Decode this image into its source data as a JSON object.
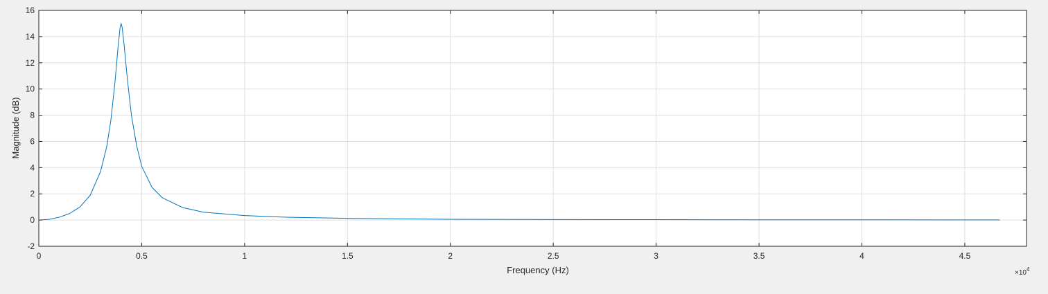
{
  "chart_data": {
    "type": "line",
    "title": "",
    "xlabel": "Frequency (Hz)",
    "ylabel": "Magnitude (dB)",
    "xlim": [
      0,
      48000
    ],
    "ylim": [
      -2,
      16
    ],
    "x_exponent_label": {
      "base": "×10",
      "power": "4"
    },
    "x_ticks": [
      0,
      5000,
      10000,
      15000,
      20000,
      25000,
      30000,
      35000,
      40000,
      45000
    ],
    "x_tick_labels": [
      "0",
      "0.5",
      "1",
      "1.5",
      "2",
      "2.5",
      "3",
      "3.5",
      "4",
      "4.5"
    ],
    "y_ticks": [
      -2,
      0,
      2,
      4,
      6,
      8,
      10,
      12,
      14,
      16
    ],
    "y_tick_labels": [
      "-2",
      "0",
      "2",
      "4",
      "6",
      "8",
      "10",
      "12",
      "14",
      "16"
    ],
    "grid": true,
    "line_color": "#0072bd",
    "series": [
      {
        "x": [
          0,
          500,
          1000,
          1500,
          2000,
          2500,
          3000,
          3300,
          3500,
          3700,
          3850,
          3950,
          4000,
          4050,
          4150,
          4300,
          4500,
          4750,
          5000,
          5500,
          6000,
          7000,
          8000,
          10000,
          12000,
          15000,
          20000,
          25000,
          30000,
          35000,
          40000,
          45000,
          46700
        ],
        "y": [
          0,
          0.05,
          0.22,
          0.5,
          1.0,
          1.9,
          3.7,
          5.6,
          7.6,
          10.5,
          13.2,
          14.7,
          15.0,
          14.7,
          13.3,
          10.8,
          8.0,
          5.7,
          4.1,
          2.5,
          1.7,
          0.95,
          0.6,
          0.34,
          0.22,
          0.13,
          0.06,
          0.04,
          0.03,
          0.02,
          0.02,
          0.01,
          0.01
        ]
      }
    ]
  }
}
